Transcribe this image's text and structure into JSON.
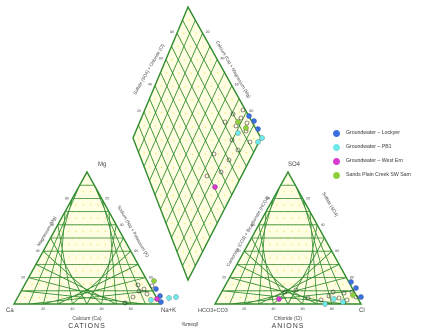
{
  "colors": {
    "grid": "#2e8b2e",
    "fill": "#fffde2",
    "dot": "#f2e55a",
    "text": "#444444"
  },
  "labels": {
    "cations_title": "CATIONS",
    "anions_title": "ANIONS",
    "units": "%meq/l",
    "ca_corner": "Ca",
    "nak_corner": "Na+K",
    "mg_corner": "Mg",
    "hco3_corner": "HCO3+CO3",
    "so4_corner": "SO4",
    "cl_corner": "Cl",
    "calcium_axis": "Calcium (Ca)",
    "magnesium_axis": "Magnesium (Mg)",
    "sodium_axis": "Sodium (Na) + Potassium (K)",
    "chloride_axis": "Chloride (Cl)",
    "sulfate_axis": "Sulfate (SO4)",
    "carbonate_axis": "Carbonate (CO3) + Bicarbonate (HCO3)",
    "diamond_left_axis": "Sulfate (SO4) + Chloride (Cl)",
    "diamond_right_axis": "Calcium (Ca) + Magnesium (Mg)"
  },
  "ticks": [
    "20",
    "40",
    "60",
    "80"
  ],
  "legend": [
    {
      "label": "Groundwater – Lockyer",
      "color": "#3a6fe0"
    },
    {
      "label": "Groundwater – PB1",
      "color": "#6fe8e8"
    },
    {
      "label": "Groundwater – West Ern",
      "color": "#d63ad0"
    },
    {
      "label": "Sands Plain Creek SW Sam",
      "color": "#8ed03a"
    }
  ]
}
